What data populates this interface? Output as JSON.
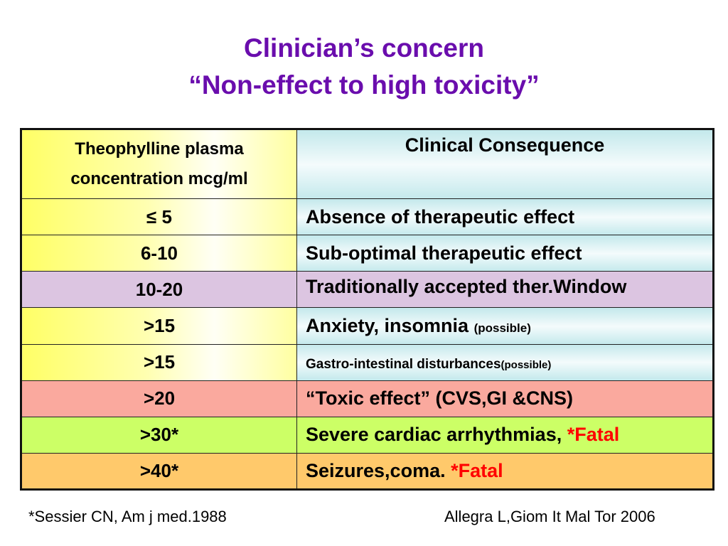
{
  "title": {
    "line1": "Clinician’s concern",
    "line2": "“Non-effect to high toxicity”"
  },
  "table": {
    "header": {
      "left_line1": "Theophylline plasma",
      "left_line2": "concentration mcg/ml",
      "right": "Clinical Consequence"
    },
    "rows": [
      {
        "concentration": "≤ 5",
        "consequence": "Absence of therapeutic effect"
      },
      {
        "concentration": "6-10",
        "consequence": "Sub-optimal therapeutic effect"
      },
      {
        "concentration": "10-20",
        "consequence": "Traditionally accepted ther.Window"
      },
      {
        "concentration": ">15",
        "consequence": "Anxiety, insomnia",
        "note": "(possible)"
      },
      {
        "concentration": ">15",
        "consequence": "Gastro-intestinal disturbances",
        "note": "(possible)"
      },
      {
        "concentration": ">20",
        "consequence": "“Toxic effect” (CVS,GI &CNS)"
      },
      {
        "concentration": ">30*",
        "consequence": "Severe cardiac arrhythmias,",
        "fatal": "*Fatal"
      },
      {
        "concentration": ">40*",
        "consequence": "Seizures,coma.",
        "fatal": "*Fatal"
      }
    ]
  },
  "footer": {
    "left": "*Sessier CN, Am j med.1988",
    "right": "Allegra L,Giom It Mal Tor 2006"
  },
  "colors": {
    "title": "#6a0dad",
    "fatal": "#ff0000",
    "row_purple": "#dcc5e1",
    "row_pink": "#faa99e",
    "row_green": "#ccff66",
    "row_orange": "#ffc96b"
  }
}
